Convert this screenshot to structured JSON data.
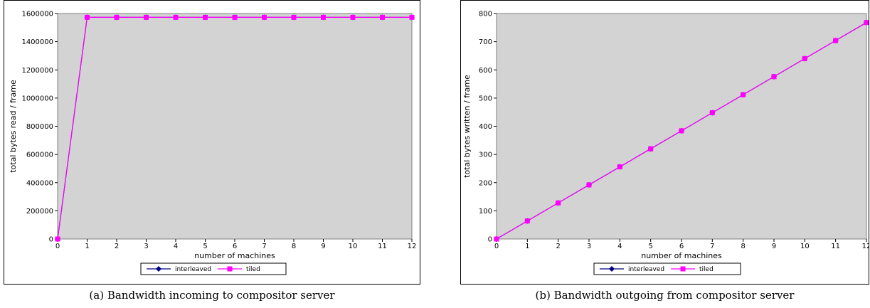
{
  "chart_data": [
    {
      "type": "line",
      "xlabel": "number of machines",
      "ylabel": "total bytes read / frame",
      "xlim": [
        0,
        12
      ],
      "ylim": [
        0,
        1600000
      ],
      "x": [
        0,
        1,
        2,
        3,
        4,
        5,
        6,
        7,
        8,
        9,
        10,
        11,
        12
      ],
      "xticks": [
        "0",
        "1",
        "2",
        "3",
        "4",
        "5",
        "6",
        "7",
        "8",
        "9",
        "10",
        "11",
        "12"
      ],
      "yticks": [
        "0",
        "200000",
        "400000",
        "600000",
        "800000",
        "1000000",
        "1200000",
        "1400000",
        "1600000"
      ],
      "series": [
        {
          "name": "interleaved",
          "color": "#000080",
          "marker": "diamond",
          "values": [
            0,
            1572864,
            1572864,
            1572864,
            1572864,
            1572864,
            1572864,
            1572864,
            1572864,
            1572864,
            1572864,
            1572864,
            1572864
          ]
        },
        {
          "name": "tiled",
          "color": "#ff00ff",
          "marker": "square",
          "values": [
            0,
            1572864,
            1572864,
            1572864,
            1572864,
            1572864,
            1572864,
            1572864,
            1572864,
            1572864,
            1572864,
            1572864,
            1572864
          ]
        }
      ],
      "grid": false,
      "plot_background": "#d3d3d3",
      "legend_position": "bottom-center"
    },
    {
      "type": "line",
      "xlabel": "number of machines",
      "ylabel": "total bytes written / frame",
      "xlim": [
        0,
        12
      ],
      "ylim": [
        0,
        800
      ],
      "x": [
        0,
        1,
        2,
        3,
        4,
        5,
        6,
        7,
        8,
        9,
        10,
        11,
        12
      ],
      "xticks": [
        "0",
        "1",
        "2",
        "3",
        "4",
        "5",
        "6",
        "7",
        "8",
        "9",
        "10",
        "11",
        "12"
      ],
      "yticks": [
        "0",
        "100",
        "200",
        "300",
        "400",
        "500",
        "600",
        "700",
        "800"
      ],
      "series": [
        {
          "name": "interleaved",
          "color": "#000080",
          "marker": "diamond",
          "values": [
            0,
            64,
            128,
            192,
            256,
            320,
            384,
            448,
            512,
            576,
            640,
            704,
            768
          ]
        },
        {
          "name": "tiled",
          "color": "#ff00ff",
          "marker": "square",
          "values": [
            0,
            64,
            128,
            192,
            256,
            320,
            384,
            448,
            512,
            576,
            640,
            704,
            768
          ]
        }
      ],
      "grid": false,
      "plot_background": "#d3d3d3",
      "legend_position": "bottom-center"
    }
  ],
  "captions": {
    "a": "(a) Bandwidth incoming to compositor server",
    "b": "(b) Bandwidth outgoing from compositor server"
  }
}
